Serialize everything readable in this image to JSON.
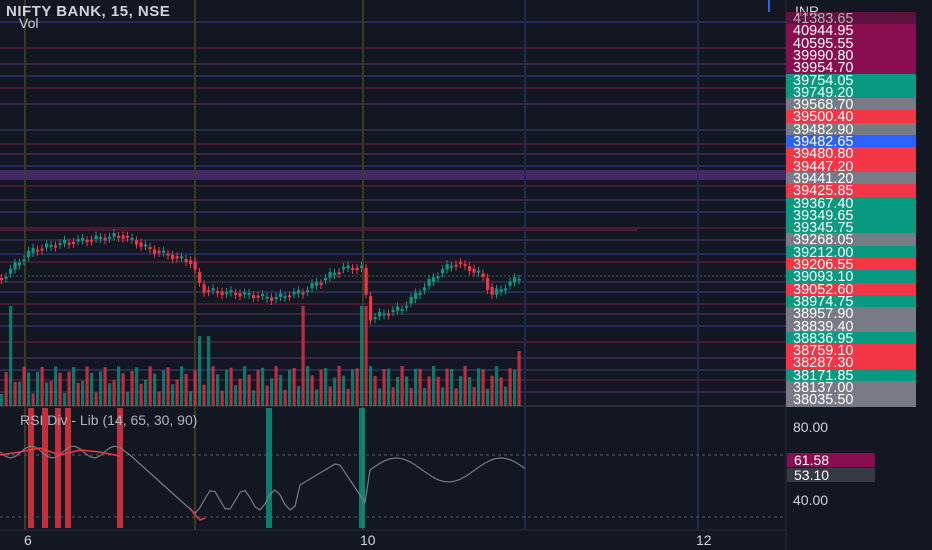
{
  "header": {
    "symbol_line": "NIFTY BANK, 15, NSE",
    "vol_label": "Vol"
  },
  "price_axis": {
    "currency": "INR",
    "labels": [
      {
        "text": "41383.65",
        "color": "#880e4f",
        "faded": true
      },
      {
        "text": "40944.95",
        "color": "#880e4f"
      },
      {
        "text": "40595.55",
        "color": "#880e4f"
      },
      {
        "text": "39990.80",
        "color": "#880e4f"
      },
      {
        "text": "39954.70",
        "color": "#880e4f"
      },
      {
        "text": "39754.05",
        "color": "#089981"
      },
      {
        "text": "39749.20",
        "color": "#089981"
      },
      {
        "text": "39568.70",
        "color": "#787b86"
      },
      {
        "text": "39500.40",
        "color": "#f23645"
      },
      {
        "text": "39482.90",
        "color": "#787b86"
      },
      {
        "text": "39482.65",
        "color": "#2962ff"
      },
      {
        "text": "39480.80",
        "color": "#f23645"
      },
      {
        "text": "39447.20",
        "color": "#f23645"
      },
      {
        "text": "39441.20",
        "color": "#787b86"
      },
      {
        "text": "39425.85",
        "color": "#f23645"
      },
      {
        "text": "39367.40",
        "color": "#089981"
      },
      {
        "text": "39349.65",
        "color": "#089981"
      },
      {
        "text": "39345.75",
        "color": "#089981"
      },
      {
        "text": "39268.05",
        "color": "#787b86"
      },
      {
        "text": "39212.00",
        "color": "#089981"
      },
      {
        "text": "39206.55",
        "color": "#f23645"
      },
      {
        "text": "39093.10",
        "color": "#089981"
      },
      {
        "text": "39052.60",
        "color": "#f23645"
      },
      {
        "text": "38974.75",
        "color": "#089981"
      },
      {
        "text": "38957.90",
        "color": "#787b86"
      },
      {
        "text": "38839.40",
        "color": "#787b86"
      },
      {
        "text": "38836.95",
        "color": "#089981"
      },
      {
        "text": "38759.10",
        "color": "#f23645"
      },
      {
        "text": "38287.30",
        "color": "#f23645"
      },
      {
        "text": "38171.85",
        "color": "#089981"
      },
      {
        "text": "38137.00",
        "color": "#787b86"
      },
      {
        "text": "38035.50",
        "color": "#787b86"
      }
    ]
  },
  "rsi": {
    "title": "RSI Div - Lib (14, 65, 30, 90)",
    "axis_top": "80.00",
    "axis_bottom": "40.00",
    "value_tag_1": {
      "text": "61.58",
      "color": "#880e4f"
    },
    "value_tag_2": {
      "text": "53.10",
      "color": "#363a45"
    }
  },
  "time_axis": {
    "labels": [
      "6",
      "10",
      "12"
    ]
  },
  "colors": {
    "background": "#131722",
    "up": "#089981",
    "down": "#f23645",
    "accent": "#2962ff"
  },
  "icons": {
    "settings": "pane-settings-icon"
  }
}
